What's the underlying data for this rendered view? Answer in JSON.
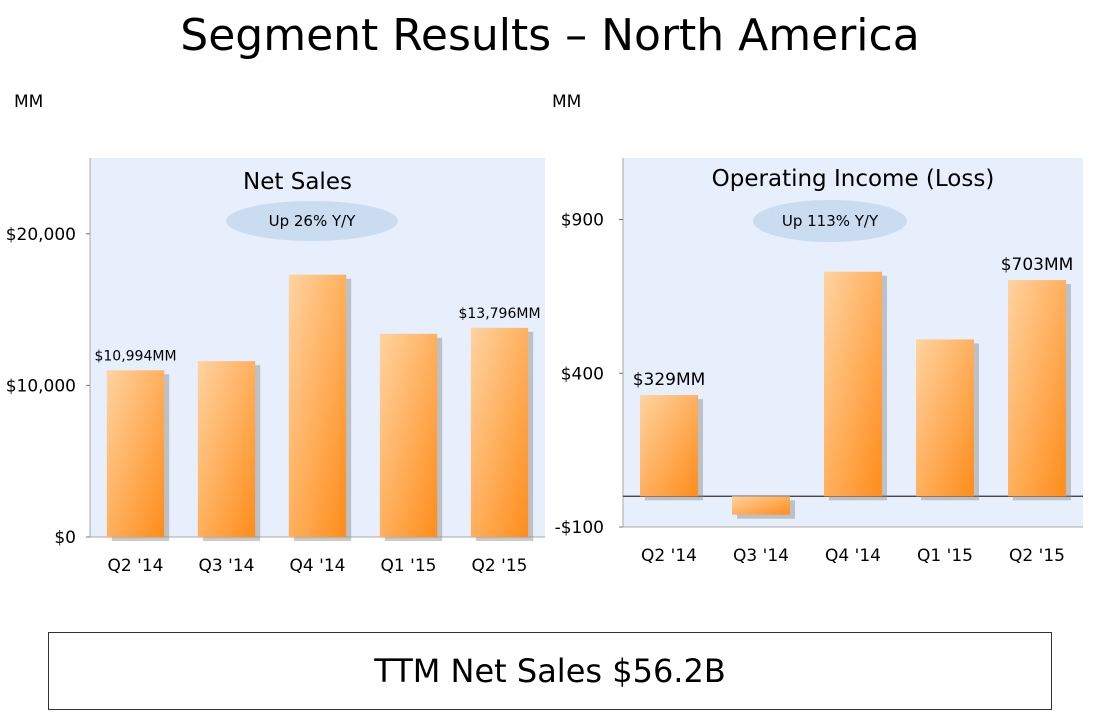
{
  "slide": {
    "title": "Segment Results – North America",
    "ttm": "TTM Net Sales $56.2B"
  },
  "colors": {
    "panel_bg": "#e6effb",
    "bar_light": "#ffd3a1",
    "bar_dark": "#ff8c1a",
    "ellipse": "#c9dcf0"
  },
  "chart_data": [
    {
      "type": "bar",
      "title": "Net Sales",
      "badge": "Up 26% Y/Y",
      "unit_label": "MM",
      "categories": [
        "Q2 '14",
        "Q3 '14",
        "Q4 '14",
        "Q1 '15",
        "Q2 '15"
      ],
      "values": [
        10994,
        11600,
        17300,
        13400,
        13796
      ],
      "ylim": [
        0,
        25000
      ],
      "yticks": [
        0,
        10000,
        20000
      ],
      "ytick_labels": [
        "$0",
        "$10,000",
        "$20,000"
      ],
      "data_labels": [
        "$10,994MM",
        "",
        "",
        "",
        "$13,796MM"
      ],
      "grid": false
    },
    {
      "type": "bar",
      "title": "Operating Income (Loss)",
      "badge": "Up 113% Y/Y",
      "unit_label": "MM",
      "categories": [
        "Q2 '14",
        "Q3 '14",
        "Q4 '14",
        "Q1 '15",
        "Q2 '15"
      ],
      "values": [
        329,
        -60,
        730,
        510,
        703
      ],
      "ylim": [
        -100,
        1100
      ],
      "yticks": [
        -100,
        400,
        900
      ],
      "ytick_labels": [
        "-$100",
        "$400",
        "$900"
      ],
      "data_labels": [
        "$329MM",
        "",
        "",
        "",
        "$703MM"
      ],
      "grid": false
    }
  ]
}
